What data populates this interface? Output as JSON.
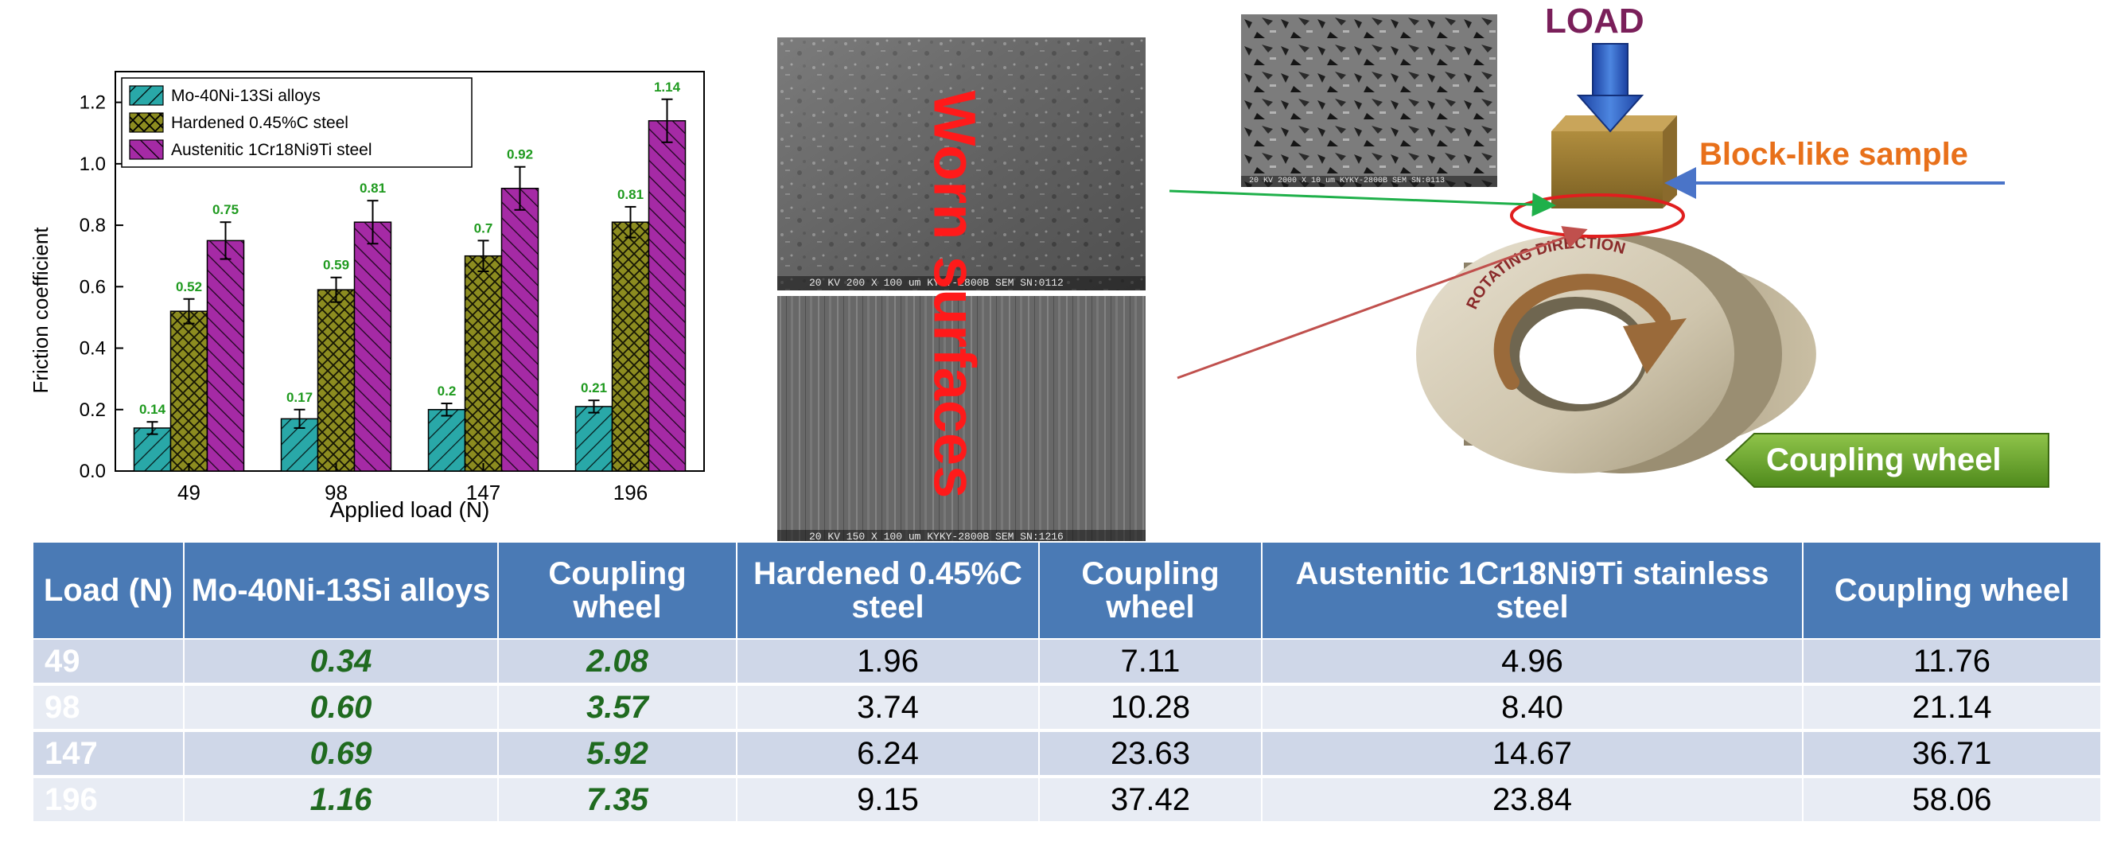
{
  "chart_data": {
    "type": "bar",
    "categories": [
      "49",
      "98",
      "147",
      "196"
    ],
    "series": [
      {
        "name": "Mo-40Ni-13Si alloys",
        "values": [
          0.14,
          0.17,
          0.2,
          0.21
        ],
        "errors": [
          0.02,
          0.03,
          0.02,
          0.02
        ],
        "color": "#29a8a8"
      },
      {
        "name": "Hardened 0.45%C steel",
        "values": [
          0.52,
          0.59,
          0.7,
          0.81
        ],
        "errors": [
          0.04,
          0.04,
          0.05,
          0.05
        ],
        "color": "#8c8c20"
      },
      {
        "name": "Austenitic 1Cr18Ni9Ti steel",
        "values": [
          0.75,
          0.81,
          0.92,
          1.14
        ],
        "errors": [
          0.06,
          0.07,
          0.07,
          0.07
        ],
        "color": "#a52aa5"
      }
    ],
    "data_labels": [
      [
        "0.14",
        "0.17",
        "0.2",
        "0.21"
      ],
      [
        "0.52",
        "0.59",
        "0.7",
        "0.81"
      ],
      [
        "0.75",
        "0.81",
        "0.92",
        "1.14"
      ]
    ],
    "yticks": [
      "0.0",
      "0.2",
      "0.4",
      "0.6",
      "0.8",
      "1.0",
      "1.2"
    ],
    "xlabel": "Applied load (N)",
    "ylabel": "Friction coefficient",
    "ylim": [
      0,
      1.3
    ],
    "legend_position": "top-left",
    "grid": false
  },
  "figure": {
    "worn_label": "Worn surfaces",
    "load_label": "LOAD",
    "block_label": "Block-like sample",
    "rotating_label": "ROTATING DIRECTION",
    "coupling_label": "Coupling wheel",
    "sem_labels": [
      "20 KV    200 X    100 um    KYKY-2800B SEM    SN:0112",
      "20 KV    150 X    100 um    KYKY-2800B SEM    SN:1216",
      "20 KV    2000 X    10 um    KYKY-2800B SEM    SN:0113"
    ]
  },
  "table": {
    "headers": [
      "Load (N)",
      "Mo-40Ni-13Si alloys",
      "Coupling wheel",
      "Hardened 0.45%C steel",
      "Coupling wheel",
      "Austenitic 1Cr18Ni9Ti stainless steel",
      "Coupling wheel"
    ],
    "rows": [
      [
        "49",
        "0.34",
        "2.08",
        "1.96",
        "7.11",
        "4.96",
        "11.76"
      ],
      [
        "98",
        "0.60",
        "3.57",
        "3.74",
        "10.28",
        "8.40",
        "21.14"
      ],
      [
        "147",
        "0.69",
        "5.92",
        "6.24",
        "23.63",
        "14.67",
        "36.71"
      ],
      [
        "196",
        "1.16",
        "7.35",
        "9.15",
        "37.42",
        "23.84",
        "58.06"
      ]
    ]
  }
}
